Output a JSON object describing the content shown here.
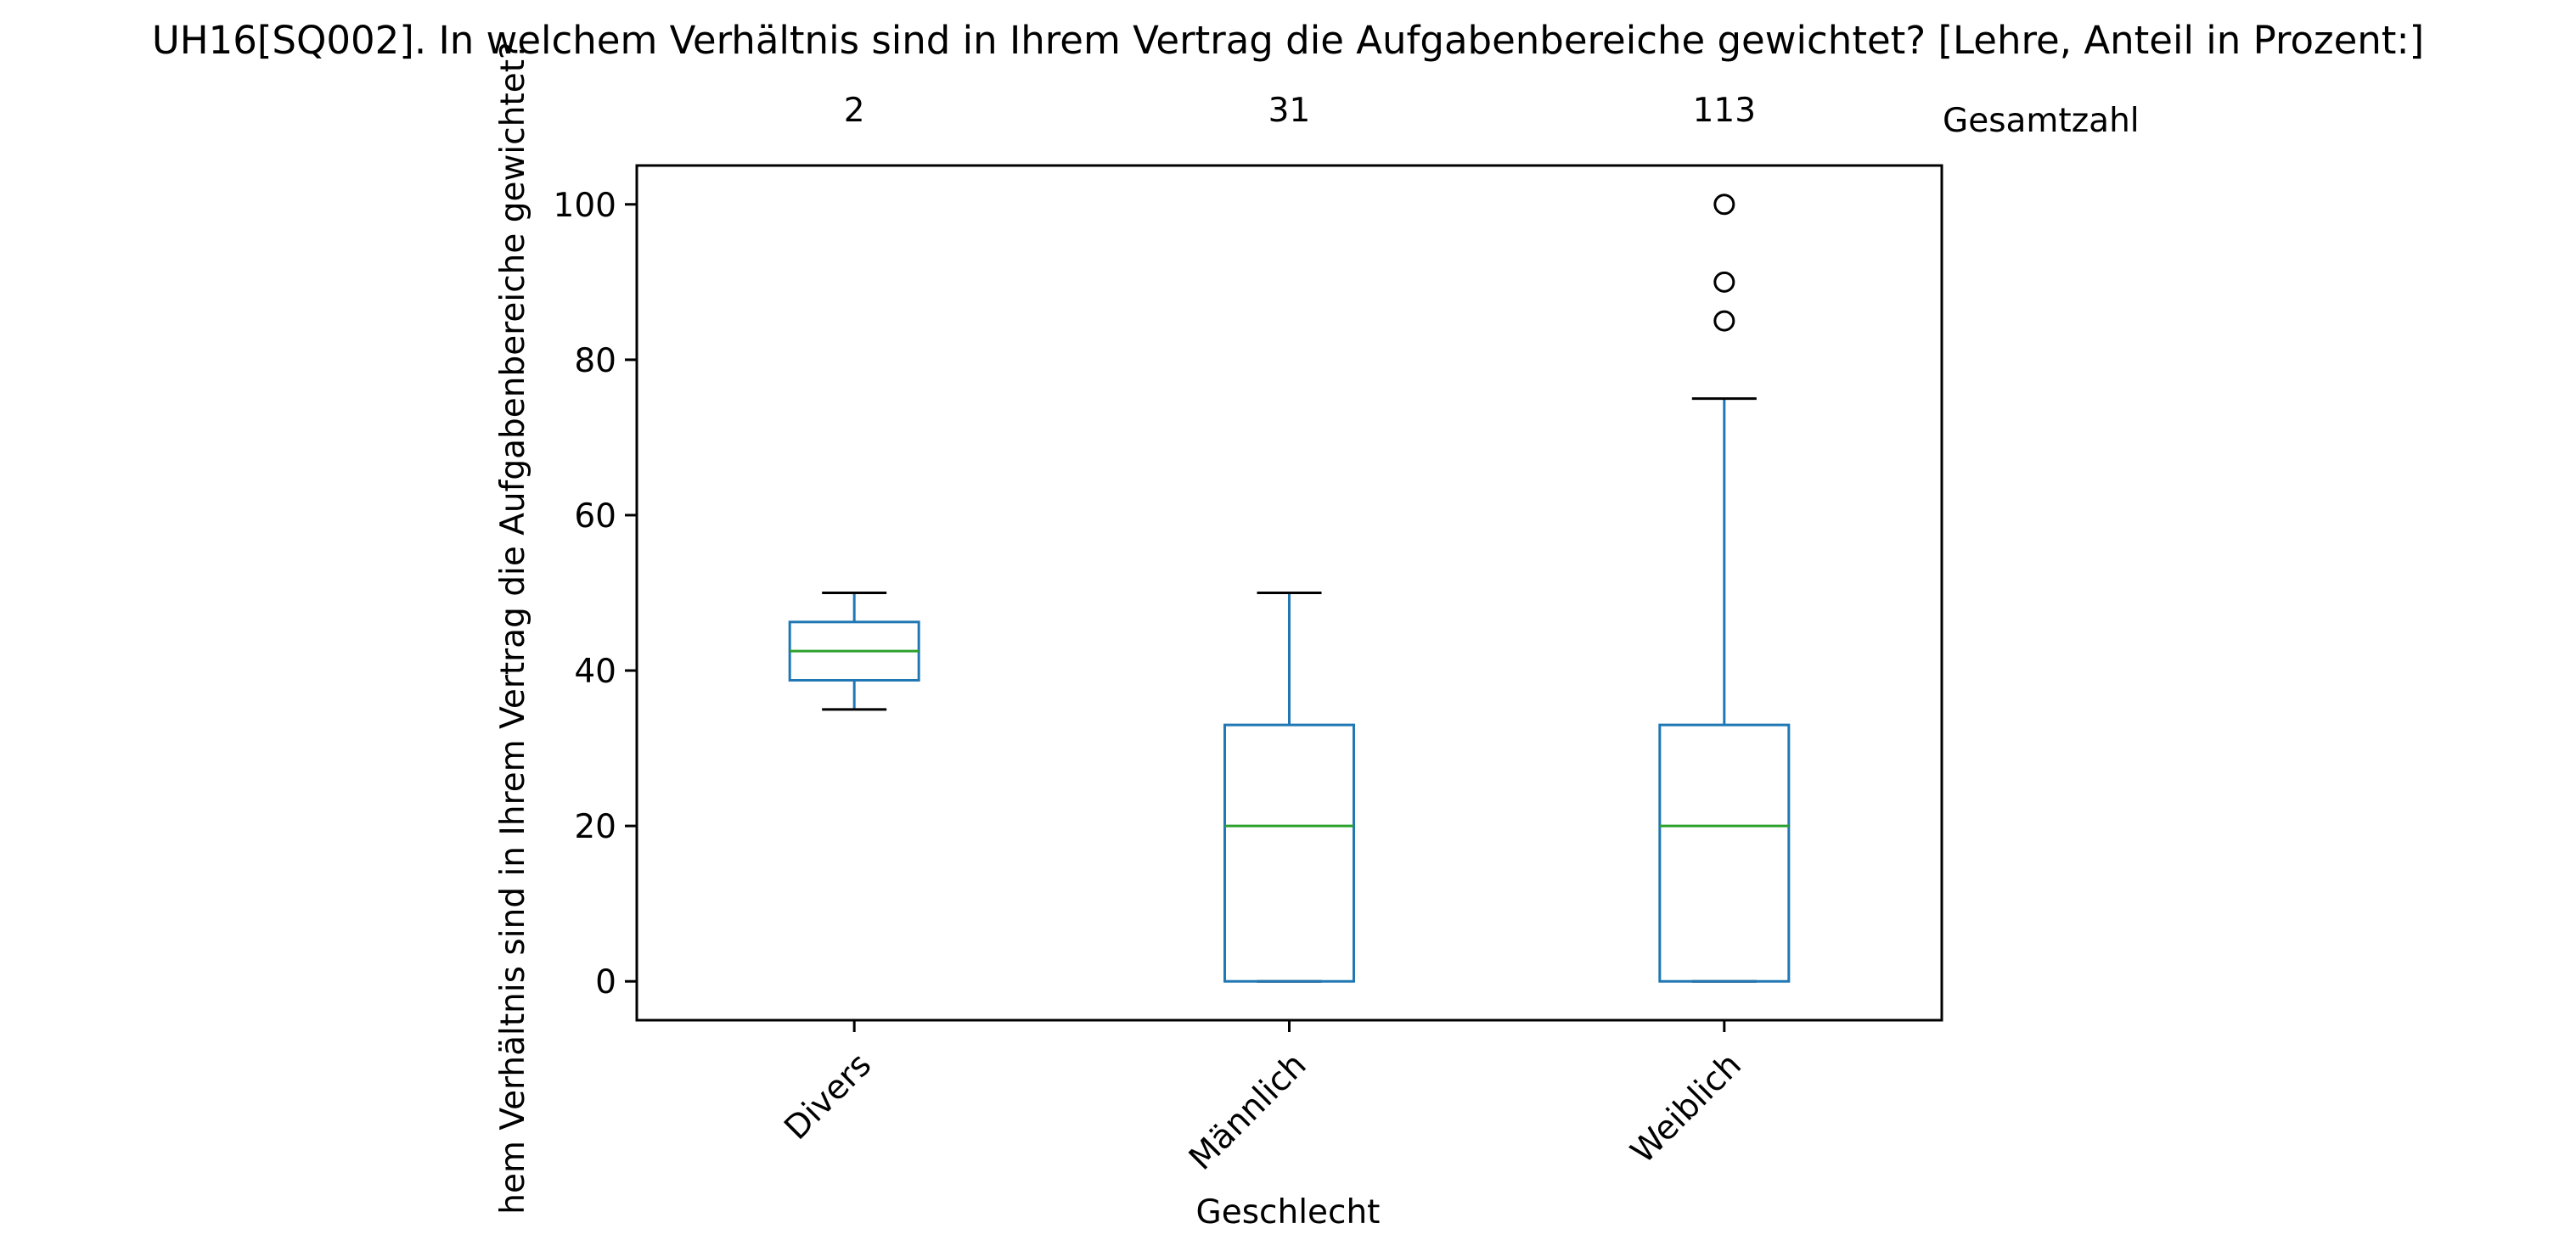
{
  "chart_data": {
    "type": "box",
    "title": "UH16[SQ002]. In welchem Verhältnis sind in Ihrem Vertrag die Aufgabenbereiche gewichtet? [Lehre, Anteil in Prozent:]",
    "xlabel": "Geschlecht",
    "ylabel": "hem Verhältnis sind in Ihrem Vertrag die Aufgabenbereiche gewichtet?",
    "count_label": "Gesamtzahl",
    "ylim": [
      -5,
      105
    ],
    "yticks": [
      0,
      20,
      40,
      60,
      80,
      100
    ],
    "grid": false,
    "categories": [
      "Divers",
      "Männlich",
      "Weiblich"
    ],
    "counts": [
      "2",
      "31",
      "113"
    ],
    "boxes": [
      {
        "category": "Divers",
        "whisker_low": 35,
        "q1": 38.75,
        "median": 42.5,
        "q3": 46.25,
        "whisker_high": 50,
        "outliers": []
      },
      {
        "category": "Männlich",
        "whisker_low": 0,
        "q1": 0,
        "median": 20,
        "q3": 33,
        "whisker_high": 50,
        "outliers": []
      },
      {
        "category": "Weiblich",
        "whisker_low": 0,
        "q1": 0,
        "median": 20,
        "q3": 33,
        "whisker_high": 75,
        "outliers": [
          85,
          90,
          100
        ]
      }
    ],
    "colors": {
      "box": "#1f77b4",
      "median": "#2ca02c",
      "cap": "#000000",
      "outlier": "#000000"
    }
  }
}
